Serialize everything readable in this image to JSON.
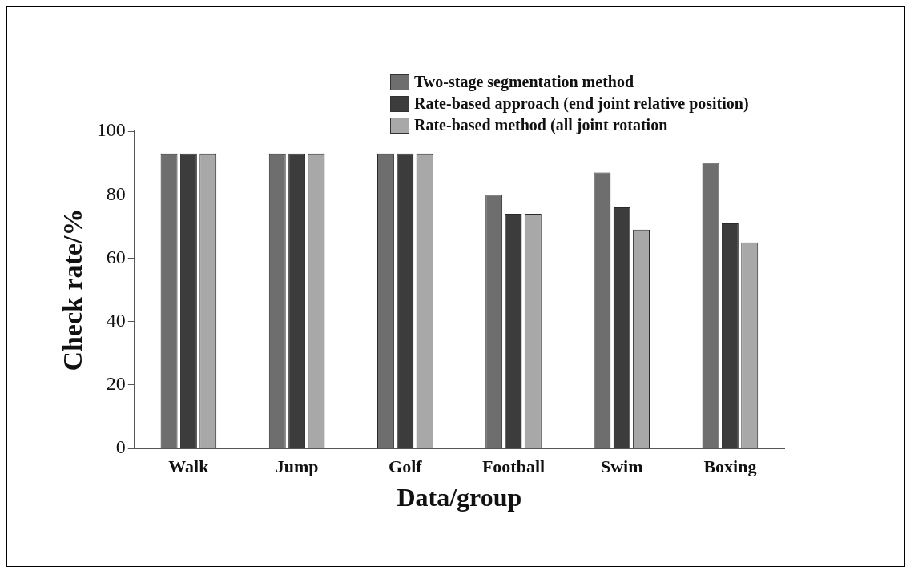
{
  "chart_data": {
    "type": "bar",
    "xlabel": "Data/group",
    "ylabel": "Check rate/%",
    "categories": [
      "Walk",
      "Jump",
      "Golf",
      "Football",
      "Swim",
      "Boxing"
    ],
    "series": [
      {
        "name": "Two-stage segmentation method",
        "color": "#6e6e6e",
        "values": [
          93,
          93,
          93,
          80,
          87,
          90
        ]
      },
      {
        "name": "Rate-based approach (end joint relative position)",
        "color": "#3c3c3c",
        "values": [
          93,
          93,
          93,
          74,
          76,
          71
        ]
      },
      {
        "name": "Rate-based method (all joint rotation",
        "color": "#a8a8a8",
        "values": [
          93,
          93,
          93,
          74,
          69,
          65
        ]
      }
    ],
    "ylim": [
      0,
      100
    ],
    "yticks": [
      0,
      20,
      40,
      60,
      80,
      100
    ],
    "legend": "top right"
  }
}
